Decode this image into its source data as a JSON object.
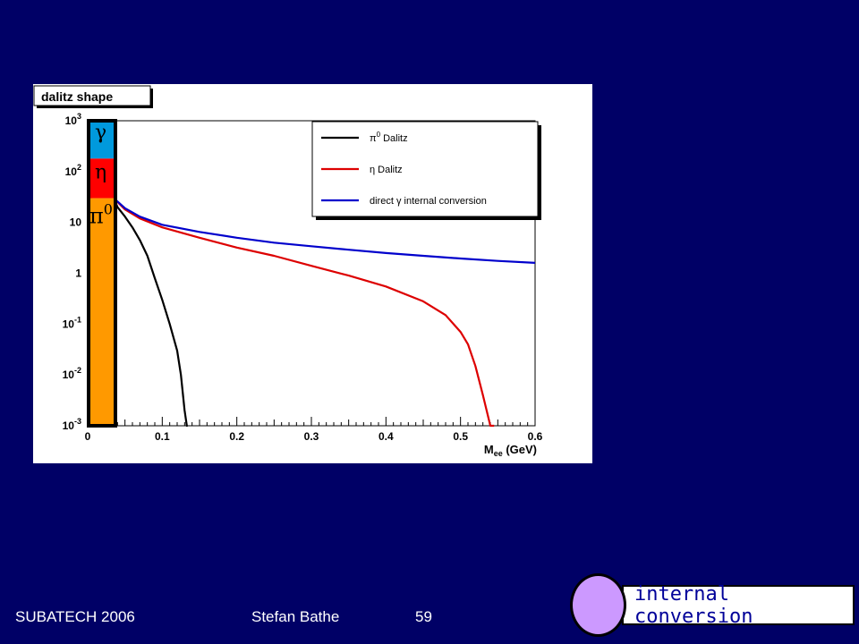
{
  "footer": {
    "conference": "SUBATECH 2006",
    "author": "Stefan Bathe",
    "page": "59"
  },
  "callout": {
    "label": "internal conversion",
    "circle_color": "#cc99ff"
  },
  "colors": {
    "background": "#000066",
    "pi0": "#000000",
    "eta": "#dd0000",
    "gamma": "#0000cc",
    "band_pi0": "#ff9900",
    "band_eta": "#ff0000",
    "band_gamma": "#0099dd"
  },
  "band_labels": {
    "gamma": "γ",
    "eta": "η",
    "pi0": "π",
    "pi0_sup": "0"
  },
  "chart_data": {
    "type": "line",
    "title": "dalitz shape",
    "xlabel": "M",
    "xlabel_sub": "ee",
    "xlabel_unit": " (GeV)",
    "xlim": [
      0,
      0.6
    ],
    "ylim": [
      0.001,
      1000
    ],
    "yscale": "log",
    "x_ticks": [
      {
        "value": 0,
        "label": "0"
      },
      {
        "value": 0.1,
        "label": "0.1"
      },
      {
        "value": 0.2,
        "label": "0.2"
      },
      {
        "value": 0.3,
        "label": "0.3"
      },
      {
        "value": 0.4,
        "label": "0.4"
      },
      {
        "value": 0.5,
        "label": "0.5"
      },
      {
        "value": 0.6,
        "label": "0.6"
      }
    ],
    "y_ticks": [
      {
        "value": 1000,
        "base": "10",
        "sup": "3"
      },
      {
        "value": 100,
        "base": "10",
        "sup": "2"
      },
      {
        "value": 10,
        "base": "10",
        "sup": ""
      },
      {
        "value": 1,
        "base": "1",
        "sup": ""
      },
      {
        "value": 0.1,
        "base": "10",
        "sup": "-1"
      },
      {
        "value": 0.01,
        "base": "10",
        "sup": "-2"
      },
      {
        "value": 0.001,
        "base": "10",
        "sup": "-3"
      }
    ],
    "legend_position": "top-right",
    "series": [
      {
        "key": "pi0",
        "legend_symbol": "π",
        "legend_sup": "0",
        "legend_text": " Dalitz",
        "x": [
          0.035,
          0.04,
          0.05,
          0.06,
          0.07,
          0.08,
          0.09,
          0.1,
          0.11,
          0.12,
          0.125,
          0.13,
          0.133,
          0.134
        ],
        "y": [
          30,
          20,
          13,
          8,
          4.5,
          2.2,
          0.8,
          0.3,
          0.1,
          0.03,
          0.01,
          0.002,
          0.001,
          0.001
        ]
      },
      {
        "key": "eta",
        "legend_symbol": "η",
        "legend_sup": "",
        "legend_text": " Dalitz",
        "x": [
          0.035,
          0.05,
          0.07,
          0.1,
          0.15,
          0.2,
          0.25,
          0.3,
          0.35,
          0.4,
          0.45,
          0.48,
          0.5,
          0.51,
          0.52,
          0.53,
          0.54,
          0.545
        ],
        "y": [
          30,
          18,
          12,
          8,
          5,
          3.2,
          2.2,
          1.4,
          0.9,
          0.55,
          0.28,
          0.15,
          0.07,
          0.04,
          0.015,
          0.004,
          0.001,
          0.001
        ]
      },
      {
        "key": "gamma",
        "legend_symbol": "direct γ",
        "legend_sup": "",
        "legend_text": " internal conversion",
        "x": [
          0.035,
          0.05,
          0.07,
          0.1,
          0.15,
          0.2,
          0.25,
          0.3,
          0.35,
          0.4,
          0.45,
          0.5,
          0.55,
          0.6
        ],
        "y": [
          30,
          19,
          13,
          9,
          6.5,
          5,
          4,
          3.4,
          2.9,
          2.5,
          2.2,
          1.95,
          1.75,
          1.6
        ]
      }
    ]
  }
}
